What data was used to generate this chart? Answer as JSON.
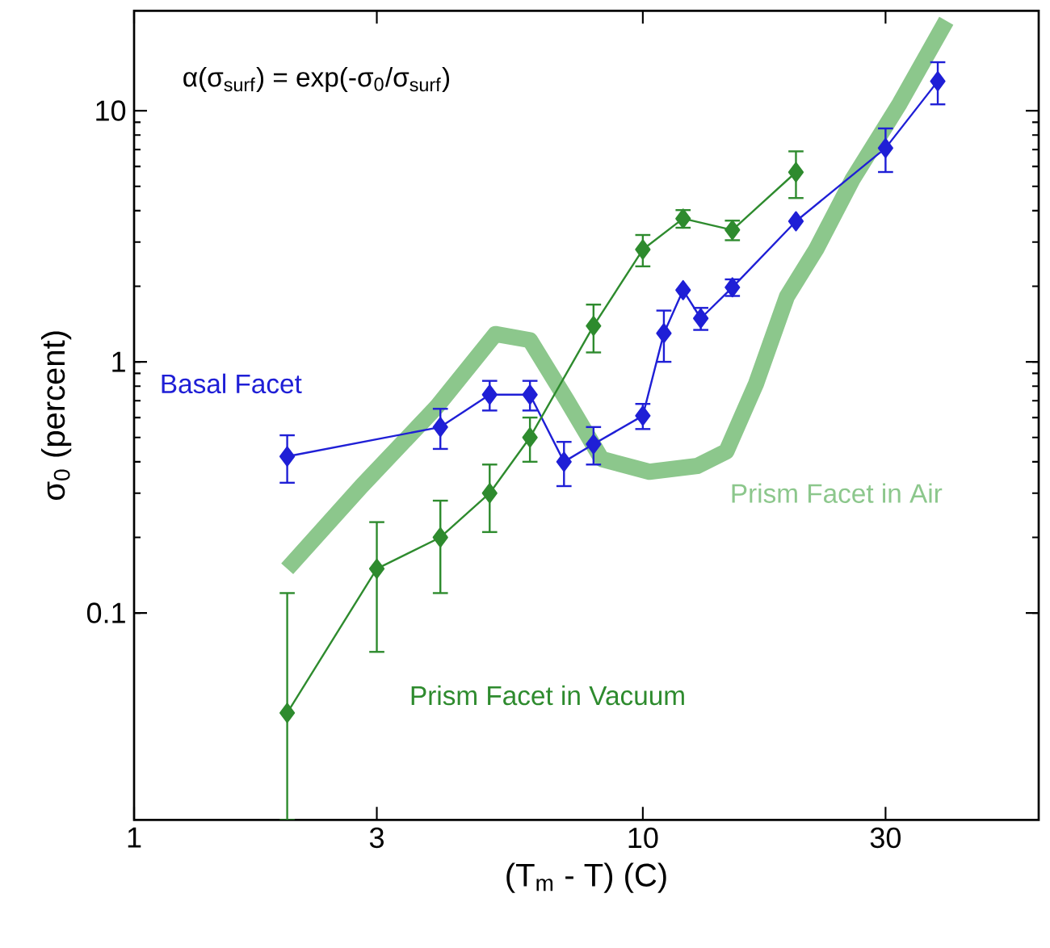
{
  "chart_data": {
    "type": "line",
    "log": "xy",
    "xlabel": "(T$_{m}$ - T) (C)",
    "ylabel": "σ$_{0}$ (percent)",
    "annotations": [
      "α(σ$_{surf}$) = exp(-σ$_{0}$/σ$_{surf}$)"
    ],
    "xlim": [
      1,
      60
    ],
    "ylim": [
      0.015,
      25
    ],
    "xticks": [
      1,
      3,
      10,
      30
    ],
    "yticks": [
      0.1,
      1,
      10
    ],
    "series": [
      {
        "name": "Prism Facet in Air",
        "color": "#8cc78c",
        "marker": "none",
        "x": [
          2,
          2.8,
          3.93,
          5.13,
          6,
          7.1,
          8.3,
          10.3,
          12.8,
          14.6,
          16.7,
          19.2,
          21.9,
          25.8,
          32,
          39.5
        ],
        "values": [
          0.15,
          0.32,
          0.66,
          1.29,
          1.22,
          0.7,
          0.41,
          0.365,
          0.385,
          0.44,
          0.82,
          1.82,
          2.8,
          5.3,
          10.7,
          22.8
        ]
      },
      {
        "name": "Basal Facet",
        "color": "#1f1fd6",
        "marker": "diamond",
        "x": [
          2,
          4,
          5,
          6,
          7,
          8,
          10,
          11,
          12,
          13,
          15,
          20,
          30,
          38
        ],
        "values": [
          0.42,
          0.55,
          0.74,
          0.74,
          0.4,
          0.47,
          0.61,
          1.3,
          1.93,
          1.49,
          1.98,
          3.63,
          7.1,
          13.1
        ],
        "errors": [
          0.09,
          0.1,
          0.1,
          0.1,
          0.08,
          0.08,
          0.07,
          0.3,
          null,
          0.15,
          0.15,
          null,
          1.4,
          2.5
        ]
      },
      {
        "name": "Prism Facet in Vacuum",
        "color": "#2e8b2e",
        "marker": "diamond",
        "x": [
          2,
          3,
          4,
          5,
          6,
          8,
          10,
          12,
          15,
          20
        ],
        "values": [
          0.04,
          0.15,
          0.2,
          0.3,
          0.5,
          1.39,
          2.8,
          3.72,
          3.35,
          5.69
        ],
        "errors": [
          [
            0.015,
            0.12
          ],
          0.08,
          0.08,
          0.09,
          0.1,
          0.3,
          0.4,
          0.3,
          0.3,
          1.2
        ]
      }
    ]
  }
}
